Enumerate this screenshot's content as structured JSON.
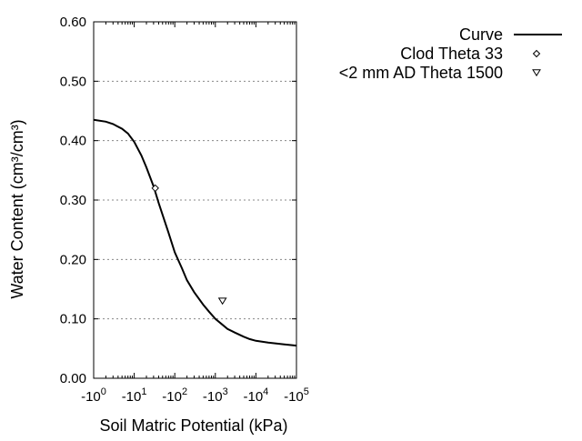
{
  "chart_data": {
    "type": "scatter",
    "xlabel": "Soil Matric Potential (kPa)",
    "ylabel": "Water Content (cm³/cm³)",
    "x_scale": "log",
    "xlim": [
      1,
      100000
    ],
    "ylim": [
      0,
      0.6
    ],
    "x_ticks": [
      {
        "value": 1,
        "base": "-10",
        "exp": "0"
      },
      {
        "value": 10,
        "base": "-10",
        "exp": "1"
      },
      {
        "value": 100,
        "base": "-10",
        "exp": "2"
      },
      {
        "value": 1000,
        "base": "-10",
        "exp": "3"
      },
      {
        "value": 10000,
        "base": "-10",
        "exp": "4"
      },
      {
        "value": 100000,
        "base": "-10",
        "exp": "5"
      }
    ],
    "y_ticks": [
      {
        "value": 0,
        "label": "0.00"
      },
      {
        "value": 0.1,
        "label": "0.10"
      },
      {
        "value": 0.2,
        "label": "0.20"
      },
      {
        "value": 0.3,
        "label": "0.30"
      },
      {
        "value": 0.4,
        "label": "0.40"
      },
      {
        "value": 0.5,
        "label": "0.50"
      },
      {
        "value": 0.6,
        "label": "0.60"
      }
    ],
    "grid": {
      "horizontal": true,
      "style": "dotted"
    },
    "legend_position": "top-right, outside plot",
    "series": [
      {
        "name": "Curve",
        "kind": "line",
        "points": [
          [
            1,
            0.435
          ],
          [
            2,
            0.432
          ],
          [
            3,
            0.428
          ],
          [
            5,
            0.42
          ],
          [
            7,
            0.412
          ],
          [
            10,
            0.398
          ],
          [
            15,
            0.375
          ],
          [
            20,
            0.355
          ],
          [
            30,
            0.323
          ],
          [
            40,
            0.295
          ],
          [
            50,
            0.275
          ],
          [
            70,
            0.245
          ],
          [
            100,
            0.212
          ],
          [
            150,
            0.185
          ],
          [
            200,
            0.165
          ],
          [
            300,
            0.145
          ],
          [
            500,
            0.124
          ],
          [
            700,
            0.112
          ],
          [
            1000,
            0.1
          ],
          [
            1500,
            0.09
          ],
          [
            2000,
            0.083
          ],
          [
            3000,
            0.077
          ],
          [
            5000,
            0.07
          ],
          [
            7000,
            0.066
          ],
          [
            10000,
            0.063
          ],
          [
            20000,
            0.06
          ],
          [
            50000,
            0.057
          ],
          [
            100000,
            0.055
          ]
        ]
      },
      {
        "name": "Clod Theta 33",
        "kind": "marker",
        "marker": "diamond",
        "points": [
          [
            33,
            0.32
          ]
        ]
      },
      {
        "name": "<2 mm AD Theta 1500",
        "kind": "marker",
        "marker": "triangle-down",
        "points": [
          [
            1500,
            0.13
          ]
        ]
      }
    ]
  }
}
